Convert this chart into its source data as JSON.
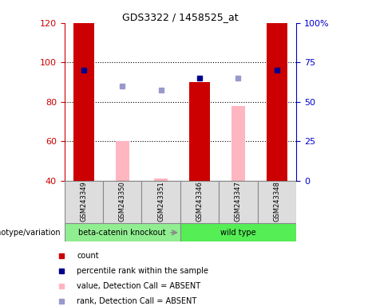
{
  "title": "GDS3322 / 1458525_at",
  "samples": [
    "GSM243349",
    "GSM243350",
    "GSM243351",
    "GSM243346",
    "GSM243347",
    "GSM243348"
  ],
  "ylim_left": [
    40,
    120
  ],
  "ylim_right": [
    0,
    100
  ],
  "yticks_left": [
    40,
    60,
    80,
    100,
    120
  ],
  "yticks_right": [
    0,
    25,
    50,
    75,
    100
  ],
  "ytick_labels_right": [
    "0",
    "25",
    "50",
    "75",
    "100%"
  ],
  "red_bars": {
    "GSM243349": 120,
    "GSM243350": null,
    "GSM243351": null,
    "GSM243346": 90,
    "GSM243347": null,
    "GSM243348": 120
  },
  "pink_bars": {
    "GSM243349": null,
    "GSM243350": 60,
    "GSM243351": 41,
    "GSM243346": null,
    "GSM243347": 78,
    "GSM243348": null
  },
  "blue_squares": {
    "GSM243349": 96,
    "GSM243350": null,
    "GSM243351": null,
    "GSM243346": 92,
    "GSM243347": null,
    "GSM243348": 96
  },
  "purple_squares": {
    "GSM243349": null,
    "GSM243350": 88,
    "GSM243351": 86,
    "GSM243346": null,
    "GSM243347": 92,
    "GSM243348": null
  },
  "bar_width": 0.55,
  "red_bar_color": "#CC0000",
  "pink_bar_color": "#FFB6C1",
  "blue_square_color": "#00008B",
  "purple_square_color": "#9999CC",
  "left_axis_color": "#CC0000",
  "right_axis_color": "#0000CC",
  "grid_dotted_at": [
    60,
    80,
    100
  ],
  "groups_order": [
    "beta-catenin knockout",
    "wild type"
  ],
  "group_spans": {
    "beta-catenin knockout": [
      0,
      3
    ],
    "wild type": [
      3,
      6
    ]
  },
  "group_colors": {
    "beta-catenin knockout": "#90EE90",
    "wild type": "#55EE55"
  },
  "legend_items": [
    {
      "label": "count",
      "color": "#CC0000"
    },
    {
      "label": "percentile rank within the sample",
      "color": "#00008B"
    },
    {
      "label": "value, Detection Call = ABSENT",
      "color": "#FFB6C1"
    },
    {
      "label": "rank, Detection Call = ABSENT",
      "color": "#9999CC"
    }
  ]
}
